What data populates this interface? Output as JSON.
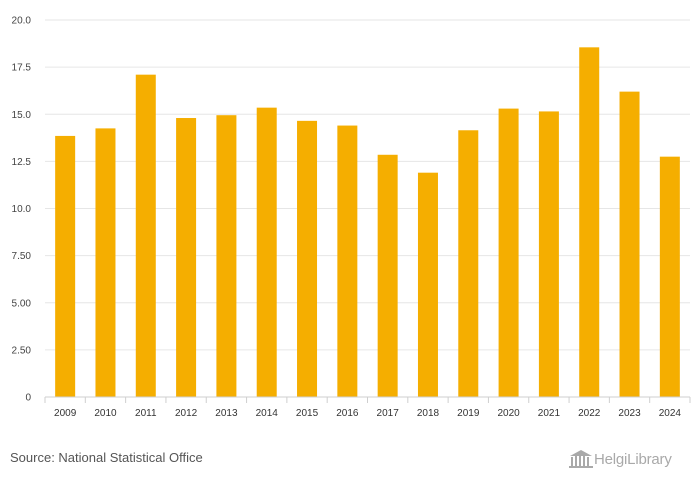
{
  "chart_data": {
    "type": "bar",
    "title": "",
    "xlabel": "",
    "ylabel": "",
    "categories": [
      "2009",
      "2010",
      "2011",
      "2012",
      "2013",
      "2014",
      "2015",
      "2016",
      "2017",
      "2018",
      "2019",
      "2020",
      "2021",
      "2022",
      "2023",
      "2024"
    ],
    "values": [
      13.85,
      14.25,
      17.1,
      14.8,
      14.95,
      15.35,
      14.65,
      14.4,
      12.85,
      11.9,
      14.15,
      15.3,
      15.15,
      18.55,
      16.2,
      12.75
    ],
    "ylim": [
      0,
      20
    ],
    "yticks": [
      0,
      2.5,
      5,
      7.5,
      10,
      12.5,
      15,
      17.5,
      20
    ],
    "ytick_labels": [
      "0",
      "2.50",
      "5.00",
      "7.50",
      "10.0",
      "12.5",
      "15.0",
      "17.5",
      "20.0"
    ],
    "grid": true,
    "bar_color": "#f5ae00"
  },
  "footer": {
    "source": "Source: National Statistical Office",
    "brand_name": "HelgiLibrary",
    "brand_icon": "library-building-icon"
  }
}
